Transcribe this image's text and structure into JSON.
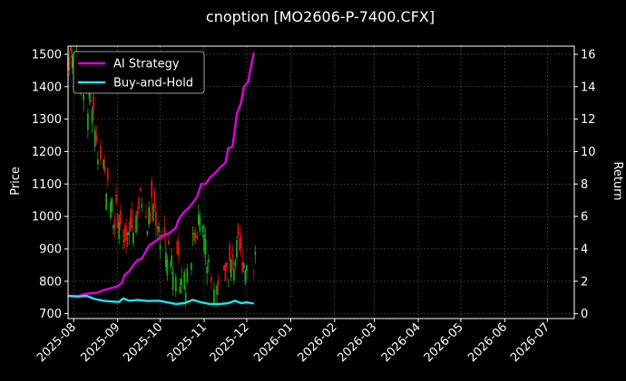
{
  "chart_data": {
    "type": "line",
    "title": "cnoption [MO2606-P-7400.CFX]",
    "ylabel_left": "Price",
    "ylabel_right": "Return",
    "grid": true,
    "legend_position": "upper-left",
    "x_ticks": [
      "2025-08",
      "2025-09",
      "2025-10",
      "2025-11",
      "2025-12",
      "2026-01",
      "2026-02",
      "2026-03",
      "2026-04",
      "2026-05",
      "2026-06",
      "2026-07"
    ],
    "xlim": [
      "2025-07-28",
      "2026-07-20"
    ],
    "y_left": {
      "ticks": [
        700,
        800,
        900,
        1000,
        1100,
        1200,
        1300,
        1400,
        1500
      ],
      "lim": [
        685,
        1525
      ]
    },
    "y_right": {
      "ticks": [
        0,
        2,
        4,
        6,
        8,
        10,
        12,
        14,
        16
      ],
      "lim": [
        -0.3,
        16.5
      ]
    },
    "candles": {
      "colors": {
        "up": "#1aa31a",
        "down": "#e01010"
      },
      "date_range": [
        "2025-07-28",
        "2025-12-08"
      ],
      "approx_range": [
        735,
        1500
      ]
    },
    "series": [
      {
        "name": "AI Strategy",
        "axis": "right",
        "color": "#e000e0",
        "points": [
          [
            "2025-07-28",
            1.1
          ],
          [
            "2025-08-05",
            1.1
          ],
          [
            "2025-08-08",
            1.2
          ],
          [
            "2025-08-12",
            1.25
          ],
          [
            "2025-08-18",
            1.3
          ],
          [
            "2025-08-22",
            1.45
          ],
          [
            "2025-08-28",
            1.6
          ],
          [
            "2025-09-01",
            1.7
          ],
          [
            "2025-09-04",
            1.9
          ],
          [
            "2025-09-06",
            2.4
          ],
          [
            "2025-09-09",
            2.6
          ],
          [
            "2025-09-12",
            3.0
          ],
          [
            "2025-09-15",
            3.3
          ],
          [
            "2025-09-18",
            3.4
          ],
          [
            "2025-09-20",
            3.7
          ],
          [
            "2025-09-23",
            4.2
          ],
          [
            "2025-09-28",
            4.5
          ],
          [
            "2025-10-03",
            4.8
          ],
          [
            "2025-10-08",
            5.0
          ],
          [
            "2025-10-12",
            5.3
          ],
          [
            "2025-10-14",
            5.8
          ],
          [
            "2025-10-17",
            6.2
          ],
          [
            "2025-10-22",
            6.6
          ],
          [
            "2025-10-27",
            7.2
          ],
          [
            "2025-10-30",
            8.0
          ],
          [
            "2025-11-02",
            8.0
          ],
          [
            "2025-11-05",
            8.4
          ],
          [
            "2025-11-08",
            8.6
          ],
          [
            "2025-11-12",
            9.0
          ],
          [
            "2025-11-16",
            9.3
          ],
          [
            "2025-11-18",
            10.2
          ],
          [
            "2025-11-21",
            10.3
          ],
          [
            "2025-11-24",
            12.3
          ],
          [
            "2025-11-27",
            13.0
          ],
          [
            "2025-11-29",
            14.0
          ],
          [
            "2025-12-02",
            14.3
          ],
          [
            "2025-12-04",
            15.2
          ],
          [
            "2025-12-06",
            16.1
          ]
        ]
      },
      {
        "name": "Buy-and-Hold",
        "axis": "right",
        "color": "#19e6ee",
        "points": [
          [
            "2025-07-28",
            1.1
          ],
          [
            "2025-08-04",
            1.05
          ],
          [
            "2025-08-10",
            1.1
          ],
          [
            "2025-08-16",
            0.9
          ],
          [
            "2025-08-22",
            0.8
          ],
          [
            "2025-08-28",
            0.75
          ],
          [
            "2025-09-02",
            0.72
          ],
          [
            "2025-09-05",
            0.95
          ],
          [
            "2025-09-09",
            0.8
          ],
          [
            "2025-09-15",
            0.85
          ],
          [
            "2025-09-22",
            0.78
          ],
          [
            "2025-09-30",
            0.8
          ],
          [
            "2025-10-06",
            0.7
          ],
          [
            "2025-10-12",
            0.6
          ],
          [
            "2025-10-18",
            0.65
          ],
          [
            "2025-10-24",
            0.85
          ],
          [
            "2025-10-30",
            0.7
          ],
          [
            "2025-11-05",
            0.6
          ],
          [
            "2025-11-12",
            0.6
          ],
          [
            "2025-11-18",
            0.65
          ],
          [
            "2025-11-23",
            0.8
          ],
          [
            "2025-11-27",
            0.65
          ],
          [
            "2025-12-01",
            0.7
          ],
          [
            "2025-12-06",
            0.62
          ]
        ]
      }
    ]
  }
}
